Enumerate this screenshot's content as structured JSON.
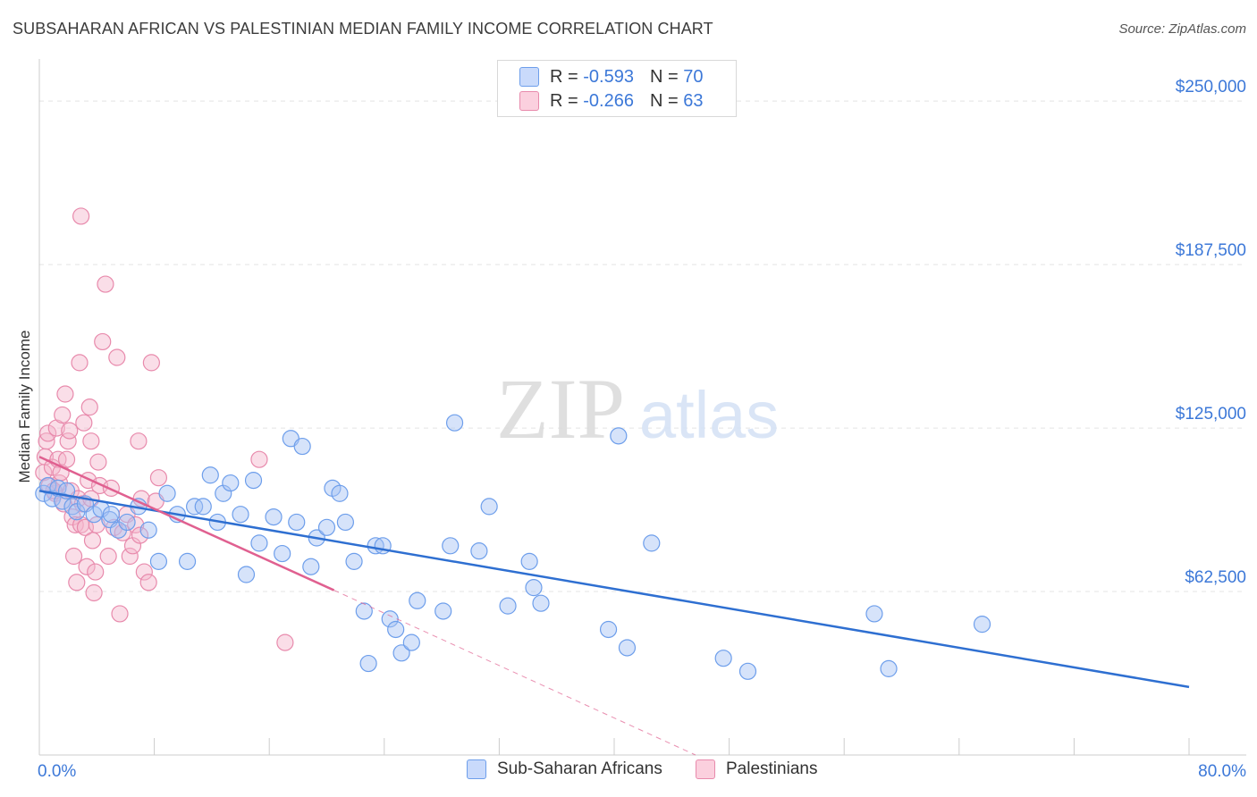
{
  "title": "SUBSAHARAN AFRICAN VS PALESTINIAN MEDIAN FAMILY INCOME CORRELATION CHART",
  "source": "Source: ZipAtlas.com",
  "watermark": {
    "zip": "ZIP",
    "atlas": "atlas"
  },
  "legend": {
    "rows": [
      {
        "r_label": "R = ",
        "r_value": "-0.593",
        "n_label": "N = ",
        "n_value": "70"
      },
      {
        "r_label": "R = ",
        "r_value": "-0.266",
        "n_label": "N = ",
        "n_value": "63"
      }
    ]
  },
  "colors": {
    "blue_fill": "#a4c2f4",
    "blue_stroke": "#6d9eeb",
    "blue_line": "#2e6fd1",
    "pink_fill": "#f4b6cc",
    "pink_stroke": "#e88aac",
    "pink_line": "#e06090",
    "grid": "#e4e4e4",
    "axis_text": "#3c78d8"
  },
  "chart_data": {
    "type": "scatter",
    "title": "SUBSAHARAN AFRICAN VS PALESTINIAN MEDIAN FAMILY INCOME CORRELATION CHART",
    "xlabel": "",
    "ylabel": "Median Family Income",
    "xlim": [
      0,
      80
    ],
    "ylim": [
      0,
      262000
    ],
    "x_tick_labels": [
      "0.0%",
      "80.0%"
    ],
    "y_ticks": [
      62500,
      125000,
      187500,
      250000
    ],
    "y_tick_labels": [
      "$62,500",
      "$125,000",
      "$187,500",
      "$250,000"
    ],
    "legend_position": "bottom",
    "series": [
      {
        "name": "Sub-Saharan Africans",
        "color": "#a4c2f4",
        "trend": {
          "x0": 0,
          "y0": 101000,
          "x1": 80,
          "y1": 26000
        },
        "points": [
          [
            0.3,
            100000
          ],
          [
            0.6,
            103000
          ],
          [
            0.9,
            98000
          ],
          [
            1.3,
            102000
          ],
          [
            1.6,
            97000
          ],
          [
            1.9,
            101000
          ],
          [
            2.3,
            95000
          ],
          [
            2.6,
            93000
          ],
          [
            3.2,
            96000
          ],
          [
            3.8,
            92000
          ],
          [
            4.3,
            94000
          ],
          [
            4.9,
            90000
          ],
          [
            5.5,
            86000
          ],
          [
            6.1,
            89000
          ],
          [
            6.9,
            95000
          ],
          [
            7.6,
            86000
          ],
          [
            8.3,
            74000
          ],
          [
            8.9,
            100000
          ],
          [
            9.6,
            92000
          ],
          [
            10.3,
            74000
          ],
          [
            10.8,
            95000
          ],
          [
            11.4,
            95000
          ],
          [
            11.9,
            107000
          ],
          [
            12.4,
            89000
          ],
          [
            12.8,
            100000
          ],
          [
            13.3,
            104000
          ],
          [
            14.0,
            92000
          ],
          [
            14.9,
            105000
          ],
          [
            15.3,
            81000
          ],
          [
            14.4,
            69000
          ],
          [
            16.3,
            91000
          ],
          [
            16.9,
            77000
          ],
          [
            17.5,
            121000
          ],
          [
            17.9,
            89000
          ],
          [
            18.3,
            118000
          ],
          [
            18.9,
            72000
          ],
          [
            19.3,
            83000
          ],
          [
            20.0,
            87000
          ],
          [
            20.4,
            102000
          ],
          [
            20.9,
            100000
          ],
          [
            21.3,
            89000
          ],
          [
            21.9,
            74000
          ],
          [
            22.6,
            55000
          ],
          [
            22.9,
            35000
          ],
          [
            23.4,
            80000
          ],
          [
            23.9,
            80000
          ],
          [
            24.4,
            52000
          ],
          [
            24.8,
            48000
          ],
          [
            25.2,
            39000
          ],
          [
            25.9,
            43000
          ],
          [
            26.3,
            59000
          ],
          [
            28.1,
            55000
          ],
          [
            28.6,
            80000
          ],
          [
            28.9,
            127000
          ],
          [
            30.6,
            78000
          ],
          [
            31.3,
            95000
          ],
          [
            32.6,
            57000
          ],
          [
            34.1,
            74000
          ],
          [
            34.4,
            64000
          ],
          [
            34.9,
            58000
          ],
          [
            39.6,
            48000
          ],
          [
            40.3,
            122000
          ],
          [
            40.9,
            41000
          ],
          [
            42.6,
            81000
          ],
          [
            47.6,
            37000
          ],
          [
            49.3,
            32000
          ],
          [
            58.1,
            54000
          ],
          [
            59.1,
            33000
          ],
          [
            65.6,
            50000
          ],
          [
            5.0,
            92000
          ]
        ]
      },
      {
        "name": "Palestinians",
        "color": "#f4b6cc",
        "trend": {
          "x0": 0,
          "y0": 114000,
          "x1": 20.5,
          "y1": 63000
        },
        "trend_ext": {
          "x0": 20.5,
          "y0": 63000,
          "x1": 80,
          "y1": -86000
        },
        "points": [
          [
            0.3,
            108000
          ],
          [
            0.4,
            114000
          ],
          [
            0.5,
            120000
          ],
          [
            0.6,
            123000
          ],
          [
            0.7,
            103000
          ],
          [
            0.9,
            110000
          ],
          [
            1.1,
            100000
          ],
          [
            1.2,
            125000
          ],
          [
            1.3,
            113000
          ],
          [
            1.4,
            104000
          ],
          [
            1.5,
            108000
          ],
          [
            1.6,
            130000
          ],
          [
            1.7,
            96000
          ],
          [
            1.8,
            138000
          ],
          [
            1.9,
            113000
          ],
          [
            2.0,
            120000
          ],
          [
            2.1,
            124000
          ],
          [
            2.2,
            101000
          ],
          [
            2.3,
            91000
          ],
          [
            2.4,
            76000
          ],
          [
            2.5,
            88000
          ],
          [
            2.6,
            66000
          ],
          [
            2.7,
            98000
          ],
          [
            2.8,
            150000
          ],
          [
            2.9,
            88000
          ],
          [
            3.0,
            96000
          ],
          [
            3.1,
            127000
          ],
          [
            3.2,
            87000
          ],
          [
            3.3,
            72000
          ],
          [
            2.9,
            206000
          ],
          [
            3.4,
            105000
          ],
          [
            3.5,
            133000
          ],
          [
            3.6,
            120000
          ],
          [
            3.7,
            82000
          ],
          [
            3.8,
            62000
          ],
          [
            3.9,
            70000
          ],
          [
            4.0,
            88000
          ],
          [
            4.1,
            112000
          ],
          [
            4.2,
            103000
          ],
          [
            4.4,
            158000
          ],
          [
            4.6,
            180000
          ],
          [
            4.8,
            76000
          ],
          [
            5.0,
            102000
          ],
          [
            5.2,
            87000
          ],
          [
            5.4,
            152000
          ],
          [
            5.6,
            54000
          ],
          [
            5.8,
            85000
          ],
          [
            6.1,
            92000
          ],
          [
            6.3,
            76000
          ],
          [
            6.5,
            80000
          ],
          [
            6.7,
            88000
          ],
          [
            6.9,
            120000
          ],
          [
            7.1,
            98000
          ],
          [
            7.3,
            70000
          ],
          [
            7.6,
            66000
          ],
          [
            7.8,
            150000
          ],
          [
            8.1,
            97000
          ],
          [
            8.3,
            106000
          ],
          [
            3.6,
            98000
          ],
          [
            7.0,
            84000
          ],
          [
            1.0,
            101000
          ],
          [
            15.3,
            113000
          ],
          [
            17.1,
            43000
          ]
        ]
      }
    ]
  }
}
